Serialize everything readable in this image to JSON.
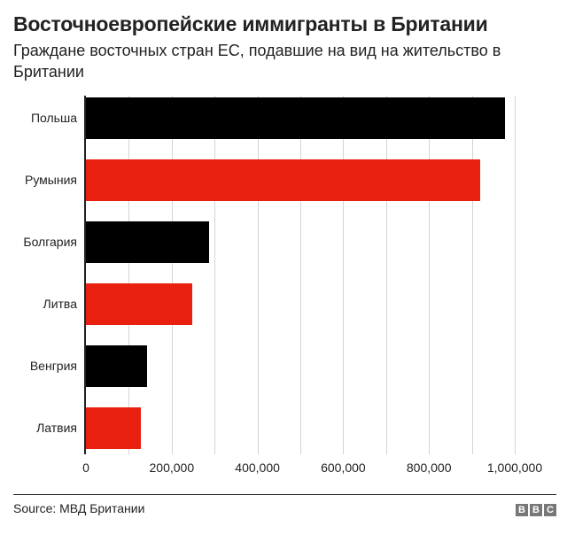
{
  "header": {
    "title": "Восточноевропейские иммигранты в Британии",
    "subtitle": "Граждане восточных стран ЕС, подавшие на вид на жительство в Британии"
  },
  "footer": {
    "source": "Source: МВД Британии",
    "logo_letters": [
      "B",
      "B",
      "C"
    ]
  },
  "colors": {
    "black": "#000000",
    "red": "#E8200F",
    "grid": "#d4d4d4"
  },
  "chart_data": {
    "type": "bar",
    "orientation": "horizontal",
    "title": "Восточноевропейские иммигранты в Британии",
    "subtitle": "Граждане восточных стран ЕС, подавшие на вид на жительство в Британии",
    "xlabel": "",
    "ylabel": "",
    "categories": [
      "Польша",
      "Румыния",
      "Болгария",
      "Литва",
      "Венгрия",
      "Латвия"
    ],
    "values": [
      977000,
      919000,
      287000,
      248000,
      143000,
      128000
    ],
    "bar_colors": [
      "#000000",
      "#E8200F",
      "#000000",
      "#E8200F",
      "#000000",
      "#E8200F"
    ],
    "xlim": [
      0,
      1000000
    ],
    "x_ticks": [
      0,
      200000,
      400000,
      600000,
      800000,
      1000000
    ],
    "x_tick_labels": [
      "0",
      "200,000",
      "400,000",
      "600,000",
      "800,000",
      "1,000,000"
    ],
    "grid": "vertical every 100,000",
    "legend": "none",
    "source": "Source: МВД Британии"
  }
}
